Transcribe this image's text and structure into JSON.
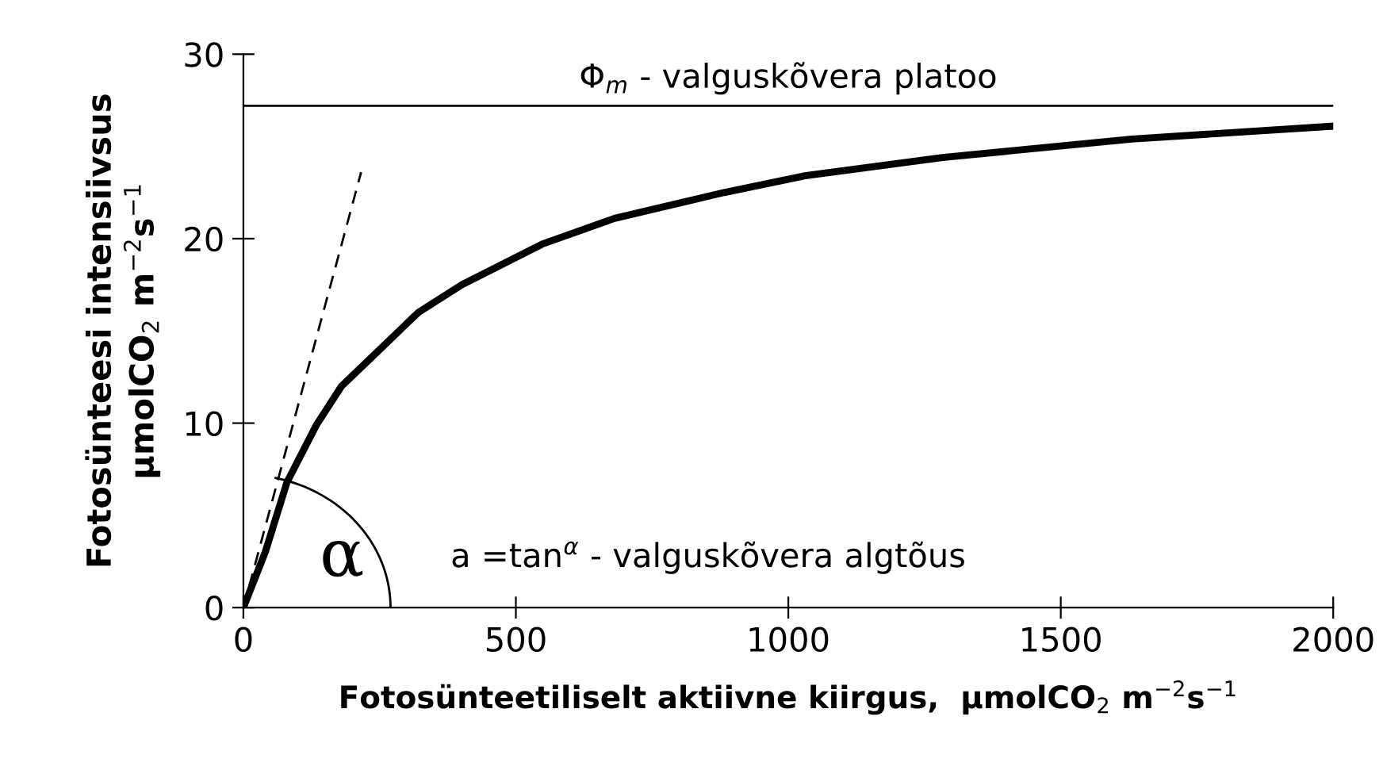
{
  "chart_data": {
    "type": "line",
    "xlabel": "Fotosünteetiliselt aktiivne kiirgus,  µmolCO$_{2}$ m$^{−2}$s$^{−1}$",
    "ylabel": "Fotosünteesi intensiivsus\nµmolCO$_{2}$ m$^{−2}$s$^{−1}$",
    "xlim": [
      0,
      2000
    ],
    "xticks": [
      0,
      500,
      1000,
      1500,
      2000
    ],
    "ylim": [
      0,
      30
    ],
    "yticks": [
      0,
      10,
      20,
      30
    ],
    "grid": false,
    "legend": false,
    "marker": "none",
    "series": [
      {
        "color": "#000000",
        "line_style": "solid",
        "x": [
          0,
          40,
          80,
          134,
          180,
          254,
          321,
          401,
          548,
          681,
          882,
          1029,
          1283,
          1630,
          2000
        ],
        "values": [
          0,
          3.0,
          6.8,
          9.9,
          12.0,
          14.1,
          16.0,
          17.5,
          19.7,
          21.1,
          22.5,
          23.4,
          24.4,
          25.4,
          26.1
        ]
      },
      {
        "color": "#000000",
        "line_style": "dashed",
        "x": [
          0,
          216
        ],
        "values": [
          0,
          23.6
        ]
      }
    ],
    "ref_lines": [
      {
        "axis": "y",
        "value": 27.2,
        "label": "Φ$_{m}$ - valguskõvera platoo",
        "color": "#000000"
      }
    ],
    "annotations": [
      "α",
      "a =tan$^{α}$ - valguskõvera algtõus"
    ]
  }
}
